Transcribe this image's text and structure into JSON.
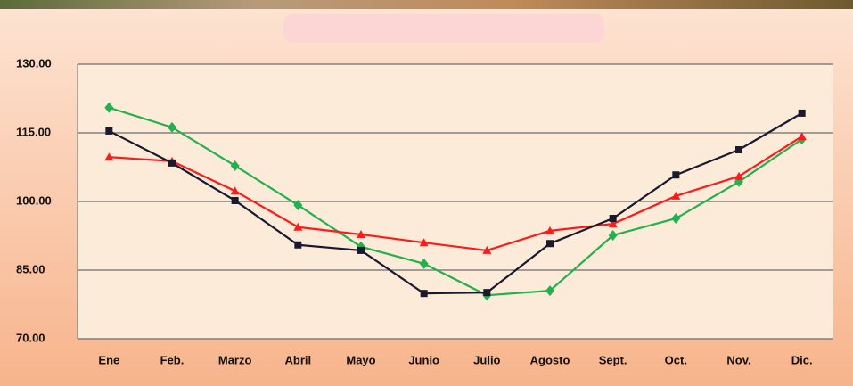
{
  "chart_data": {
    "type": "line",
    "categories": [
      "Ene",
      "Feb.",
      "Marzo",
      "Abril",
      "Mayo",
      "Junio",
      "Julio",
      "Agosto",
      "Sept.",
      "Oct.",
      "Nov.",
      "Dic."
    ],
    "series": [
      {
        "color": "#22b14c",
        "marker": "diamond",
        "values": [
          120.5,
          116.2,
          107.8,
          99.2,
          90.1,
          86.4,
          79.5,
          80.5,
          92.6,
          96.3,
          104.3,
          113.6
        ]
      },
      {
        "color": "#ff1a1a",
        "marker": "triangle",
        "values": [
          109.7,
          108.8,
          102.3,
          94.4,
          92.8,
          91.0,
          89.3,
          93.6,
          95.1,
          101.2,
          105.5,
          114.2
        ]
      },
      {
        "color": "#1a1a2e",
        "marker": "square",
        "values": [
          115.4,
          108.4,
          100.2,
          90.5,
          89.3,
          79.9,
          80.1,
          90.8,
          96.3,
          105.8,
          111.3,
          119.3
        ]
      }
    ],
    "ylim": [
      70,
      130
    ],
    "yticks": [
      {
        "value": 70,
        "label": "70.00"
      },
      {
        "value": 85,
        "label": "85.00"
      },
      {
        "value": 100,
        "label": "100.00"
      },
      {
        "value": 115,
        "label": "115.00"
      },
      {
        "value": 130,
        "label": "130.00"
      }
    ],
    "grid": true
  }
}
